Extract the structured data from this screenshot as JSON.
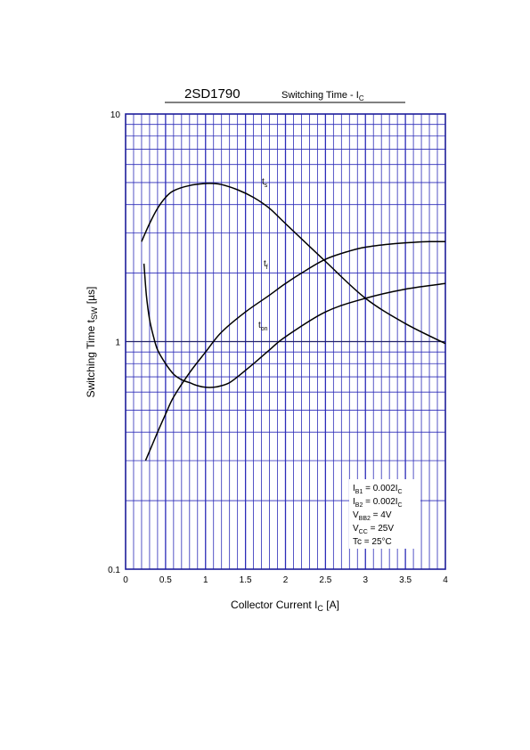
{
  "chart_data": {
    "type": "line",
    "title": "2SD1790",
    "subtitle": [
      "Switching Time - I",
      "C"
    ],
    "xlabel": [
      "Collector Current  I",
      "C",
      "  [A]"
    ],
    "ylabel": [
      "Switching Time  t",
      "SW",
      "  [µs]"
    ],
    "x_scale": "linear",
    "y_scale": "log",
    "xlim": [
      0,
      4
    ],
    "ylim": [
      0.1,
      10
    ],
    "x_ticks": [
      0,
      0.5,
      1,
      1.5,
      2,
      2.5,
      3,
      3.5,
      4
    ],
    "x_tick_labels": [
      "0",
      "0.5",
      "1",
      "1.5",
      "2",
      "2.5",
      "3",
      "3.5",
      "4"
    ],
    "y_ticks": [
      0.1,
      1,
      10
    ],
    "y_tick_labels": [
      "0.1",
      "1",
      "10"
    ],
    "grid": true,
    "colors": {
      "grid": "#2b2bb8",
      "curve": "#000000"
    },
    "series": [
      {
        "name": [
          "t",
          "s"
        ],
        "x": [
          0.2,
          0.3,
          0.4,
          0.5,
          0.6,
          0.8,
          1.0,
          1.1,
          1.2,
          1.4,
          1.6,
          1.8,
          2.0,
          2.5,
          3.0,
          3.5,
          4.0
        ],
        "y": [
          2.75,
          3.3,
          3.85,
          4.3,
          4.6,
          4.85,
          4.95,
          4.95,
          4.9,
          4.65,
          4.3,
          3.85,
          3.3,
          2.25,
          1.55,
          1.2,
          0.98
        ]
      },
      {
        "name": [
          "t",
          "f"
        ],
        "x": [
          0.25,
          0.4,
          0.5,
          0.6,
          0.8,
          1.0,
          1.2,
          1.5,
          1.8,
          2.0,
          2.2,
          2.5,
          2.8,
          3.0,
          3.3,
          3.6,
          3.8,
          4.0
        ],
        "y": [
          0.3,
          0.4,
          0.48,
          0.57,
          0.73,
          0.9,
          1.1,
          1.35,
          1.6,
          1.8,
          2.0,
          2.3,
          2.5,
          2.6,
          2.68,
          2.73,
          2.75,
          2.75
        ]
      },
      {
        "name": [
          "t",
          "on"
        ],
        "x": [
          0.23,
          0.26,
          0.3,
          0.35,
          0.4,
          0.5,
          0.6,
          0.7,
          0.8,
          0.9,
          1.0,
          1.1,
          1.2,
          1.3,
          1.4,
          1.6,
          1.8,
          2.0,
          2.5,
          3.0,
          3.5,
          4.0
        ],
        "y": [
          2.2,
          1.6,
          1.25,
          1.05,
          0.92,
          0.8,
          0.72,
          0.68,
          0.66,
          0.64,
          0.63,
          0.63,
          0.64,
          0.66,
          0.7,
          0.8,
          0.92,
          1.05,
          1.35,
          1.55,
          1.7,
          1.8
        ]
      }
    ],
    "annotations": [
      [
        "I",
        "B1",
        " = 0.002I",
        "C"
      ],
      [
        "I",
        "B2",
        " = 0.002I",
        "C"
      ],
      [
        "V",
        "BB2",
        " = 4V"
      ],
      [
        "V",
        "CC",
        " = 25V"
      ],
      [
        "Tc = 25°C"
      ]
    ]
  }
}
